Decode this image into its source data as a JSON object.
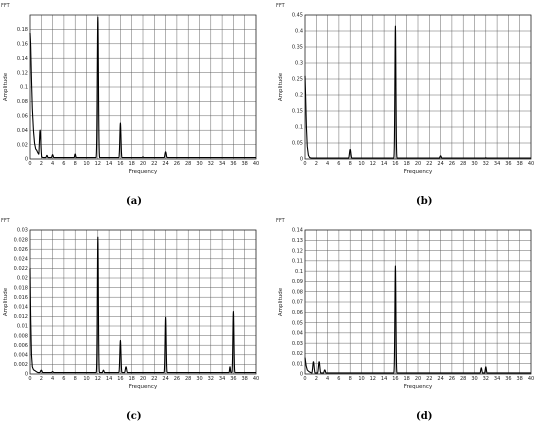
{
  "chart_data": [
    {
      "type": "line",
      "panel_title": "FFT",
      "caption": "(a)",
      "xlabel": "Frequency",
      "ylabel": "Amplitude",
      "xlim": [
        0,
        40
      ],
      "ylim": [
        0,
        0.2
      ],
      "xticks": [
        0,
        2,
        4,
        6,
        8,
        10,
        12,
        14,
        16,
        18,
        20,
        22,
        24,
        26,
        28,
        30,
        32,
        34,
        36,
        38,
        40
      ],
      "yticks": [
        0,
        0.02,
        0.04,
        0.06,
        0.08,
        0.1,
        0.12,
        0.14,
        0.16,
        0.18
      ],
      "ytick_labels": [
        "0",
        "0.02",
        "0.04",
        "0.06",
        "0.08",
        "0.1",
        "0.12",
        "0.14",
        "0.16",
        "0.18"
      ],
      "grid": true,
      "baseline": 0.002,
      "dense_start": [
        [
          0,
          0.175
        ],
        [
          0.1,
          0.16
        ],
        [
          0.25,
          0.11
        ],
        [
          0.4,
          0.07
        ],
        [
          0.6,
          0.04
        ],
        [
          0.8,
          0.022
        ],
        [
          1.0,
          0.014
        ],
        [
          1.2,
          0.012
        ]
      ],
      "peaks": [
        [
          1.8,
          0.04,
          0.3
        ],
        [
          3.0,
          0.005,
          0.3
        ],
        [
          4.0,
          0.006,
          0.3
        ],
        [
          8.0,
          0.007,
          0.25
        ],
        [
          12.0,
          0.197,
          0.25
        ],
        [
          16.0,
          0.05,
          0.25
        ],
        [
          20.0,
          0.003,
          0.3
        ],
        [
          24.0,
          0.01,
          0.3
        ]
      ]
    },
    {
      "type": "line",
      "panel_title": "FFT",
      "caption": "(b)",
      "xlabel": "Frequency",
      "ylabel": "Amplitude",
      "xlim": [
        0,
        40
      ],
      "ylim": [
        0,
        0.45
      ],
      "xticks": [
        0,
        2,
        4,
        6,
        8,
        10,
        12,
        14,
        16,
        18,
        20,
        22,
        24,
        26,
        28,
        30,
        32,
        34,
        36,
        38,
        40
      ],
      "yticks": [
        0,
        0.05,
        0.1,
        0.15,
        0.2,
        0.25,
        0.3,
        0.35,
        0.4,
        0.45
      ],
      "ytick_labels": [
        "0",
        "0.05",
        "0.1",
        "0.15",
        "0.2",
        "0.25",
        "0.3",
        "0.35",
        "0.4",
        "0.45"
      ],
      "grid": true,
      "baseline": 0.003,
      "dense_start": [
        [
          0,
          0.26
        ],
        [
          0.1,
          0.2
        ],
        [
          0.25,
          0.1
        ],
        [
          0.4,
          0.04
        ],
        [
          0.6,
          0.012
        ],
        [
          0.8,
          0.005
        ]
      ],
      "peaks": [
        [
          8.0,
          0.03,
          0.3
        ],
        [
          16.0,
          0.415,
          0.22
        ],
        [
          24.0,
          0.01,
          0.3
        ],
        [
          32.0,
          0.004,
          0.3
        ]
      ]
    },
    {
      "type": "line",
      "panel_title": "FFT",
      "caption": "(c)",
      "xlabel": "Frequency",
      "ylabel": "Amplitude",
      "xlim": [
        0,
        40
      ],
      "ylim": [
        0,
        0.03
      ],
      "xticks": [
        0,
        2,
        4,
        6,
        8,
        10,
        12,
        14,
        16,
        18,
        20,
        22,
        24,
        26,
        28,
        30,
        32,
        34,
        36,
        38,
        40
      ],
      "yticks": [
        0,
        0.002,
        0.004,
        0.006,
        0.008,
        0.01,
        0.012,
        0.014,
        0.016,
        0.018,
        0.02,
        0.022,
        0.024,
        0.026,
        0.028,
        0.03
      ],
      "ytick_labels": [
        "0",
        "0.002",
        "0.004",
        "0.006",
        "0.008",
        "0.01",
        "0.012",
        "0.014",
        "0.016",
        "0.018",
        "0.02",
        "0.022",
        "0.024",
        "0.026",
        "0.028",
        "0.03"
      ],
      "grid": true,
      "baseline": 0.0003,
      "dense_start": [
        [
          0,
          0.022
        ],
        [
          0.1,
          0.012
        ],
        [
          0.25,
          0.004
        ],
        [
          0.4,
          0.0015
        ],
        [
          0.6,
          0.0009
        ],
        [
          1.0,
          0.0006
        ]
      ],
      "peaks": [
        [
          2.0,
          0.0008,
          0.4
        ],
        [
          4.0,
          0.0005,
          0.4
        ],
        [
          12.0,
          0.0285,
          0.22
        ],
        [
          13.0,
          0.0008,
          0.3
        ],
        [
          16.0,
          0.007,
          0.25
        ],
        [
          17.0,
          0.0015,
          0.3
        ],
        [
          24.0,
          0.0118,
          0.22
        ],
        [
          36.0,
          0.013,
          0.22
        ],
        [
          35.4,
          0.0015,
          0.2
        ]
      ]
    },
    {
      "type": "line",
      "panel_title": "FFT",
      "caption": "(d)",
      "xlabel": "Frequency",
      "ylabel": "Amplitude",
      "xlim": [
        0,
        40
      ],
      "ylim": [
        0,
        0.14
      ],
      "xticks": [
        0,
        2,
        4,
        6,
        8,
        10,
        12,
        14,
        16,
        18,
        20,
        22,
        24,
        26,
        28,
        30,
        32,
        34,
        36,
        38,
        40
      ],
      "yticks": [
        0,
        0.01,
        0.02,
        0.03,
        0.04,
        0.05,
        0.06,
        0.07,
        0.08,
        0.09,
        0.1,
        0.11,
        0.12,
        0.13,
        0.14
      ],
      "ytick_labels": [
        "0",
        "0.01",
        "0.02",
        "0.03",
        "0.04",
        "0.05",
        "0.06",
        "0.07",
        "0.08",
        "0.09",
        "0.1",
        "0.11",
        "0.12",
        "0.13",
        "0.14"
      ],
      "grid": true,
      "baseline": 0.001,
      "dense_start": [
        [
          0,
          0.016
        ],
        [
          0.2,
          0.008
        ],
        [
          0.4,
          0.004
        ]
      ],
      "peaks": [
        [
          1.5,
          0.012,
          0.3
        ],
        [
          2.5,
          0.012,
          0.3
        ],
        [
          3.5,
          0.004,
          0.3
        ],
        [
          16.0,
          0.105,
          0.22
        ],
        [
          31.2,
          0.006,
          0.25
        ],
        [
          32.0,
          0.007,
          0.25
        ]
      ]
    }
  ]
}
